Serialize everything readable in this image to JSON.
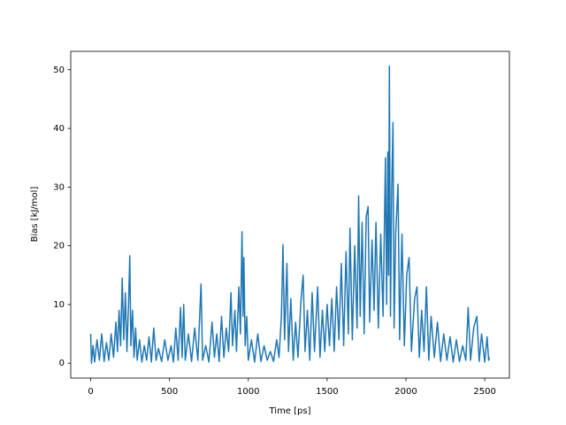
{
  "chart_data": {
    "type": "line",
    "xlabel": "Time [ps]",
    "ylabel": "Bias [kJ/mol]",
    "color": "#1f77b4",
    "x": [
      0,
      5,
      15,
      25,
      40,
      55,
      70,
      85,
      100,
      115,
      130,
      145,
      160,
      170,
      180,
      190,
      200,
      210,
      220,
      230,
      240,
      248,
      255,
      265,
      275,
      285,
      295,
      310,
      325,
      340,
      355,
      370,
      385,
      400,
      415,
      430,
      450,
      470,
      490,
      510,
      525,
      540,
      555,
      570,
      580,
      590,
      600,
      620,
      640,
      660,
      680,
      700,
      710,
      730,
      750,
      770,
      785,
      800,
      815,
      830,
      845,
      860,
      875,
      890,
      900,
      915,
      925,
      940,
      950,
      960,
      967,
      972,
      980,
      990,
      1000,
      1020,
      1040,
      1060,
      1080,
      1100,
      1120,
      1140,
      1160,
      1180,
      1195,
      1210,
      1220,
      1230,
      1245,
      1255,
      1270,
      1285,
      1300,
      1315,
      1335,
      1348,
      1360,
      1375,
      1390,
      1405,
      1420,
      1440,
      1455,
      1470,
      1485,
      1500,
      1515,
      1530,
      1545,
      1560,
      1575,
      1590,
      1605,
      1620,
      1635,
      1645,
      1660,
      1675,
      1690,
      1700,
      1710,
      1722,
      1735,
      1748,
      1760,
      1770,
      1785,
      1798,
      1810,
      1825,
      1840,
      1855,
      1870,
      1878,
      1885,
      1890,
      1895,
      1902,
      1910,
      1918,
      1925,
      1935,
      1950,
      1960,
      1975,
      1990,
      2005,
      2020,
      2035,
      2055,
      2070,
      2085,
      2100,
      2115,
      2130,
      2145,
      2160,
      2180,
      2200,
      2220,
      2240,
      2260,
      2280,
      2300,
      2320,
      2340,
      2360,
      2380,
      2395,
      2410,
      2430,
      2450,
      2465,
      2480,
      2500,
      2515,
      2525,
      2530
    ],
    "values": [
      5,
      0,
      3,
      0.2,
      4,
      0.5,
      5,
      0.3,
      3.5,
      0.5,
      5,
      1,
      7,
      2,
      9,
      3,
      14.5,
      4,
      12,
      2,
      10,
      18.3,
      3,
      9,
      1,
      6,
      0.5,
      4,
      0.2,
      3,
      0.5,
      4.5,
      0.2,
      6,
      0.5,
      2.5,
      0.3,
      4,
      0.5,
      3,
      0.2,
      6,
      0.5,
      9.5,
      1,
      10,
      0.5,
      5,
      0.3,
      6,
      0.5,
      13.5,
      0.5,
      3,
      0.2,
      7,
      1,
      5,
      0.3,
      8,
      1,
      6,
      2,
      12,
      3,
      9,
      2,
      13,
      5,
      22.4,
      8,
      18,
      3,
      8,
      0.5,
      4,
      0.2,
      5,
      0.3,
      3,
      0.5,
      2,
      0.3,
      4,
      1,
      8,
      20.2,
      4,
      17,
      2,
      11,
      0.5,
      7,
      1,
      11,
      15,
      2,
      9,
      0.5,
      12,
      2,
      13,
      1,
      9,
      2,
      10,
      3,
      11,
      2,
      13,
      4,
      17,
      3,
      19,
      5,
      23,
      4,
      20,
      6,
      28.5,
      8,
      24,
      5,
      25,
      26.7,
      7,
      21,
      9,
      24,
      6,
      22,
      8,
      35,
      10,
      36,
      15,
      50.6,
      8,
      30,
      41,
      6,
      22,
      30.5,
      4,
      22,
      3,
      15,
      18,
      2,
      11,
      13,
      1,
      9,
      2,
      13,
      0.5,
      8,
      1,
      7,
      0.3,
      5,
      0.5,
      4.5,
      0.2,
      4,
      0.3,
      3,
      0.5,
      9.5,
      0.5,
      6,
      8,
      0.3,
      5,
      0.2,
      4.5,
      0.5,
      1
    ],
    "xlim": [
      -126.5,
      2656.5
    ],
    "ylim": [
      -2.53,
      53.13
    ],
    "xticks": [
      0,
      500,
      1000,
      1500,
      2000,
      2500
    ],
    "yticks": [
      0,
      10,
      20,
      30,
      40,
      50
    ]
  }
}
